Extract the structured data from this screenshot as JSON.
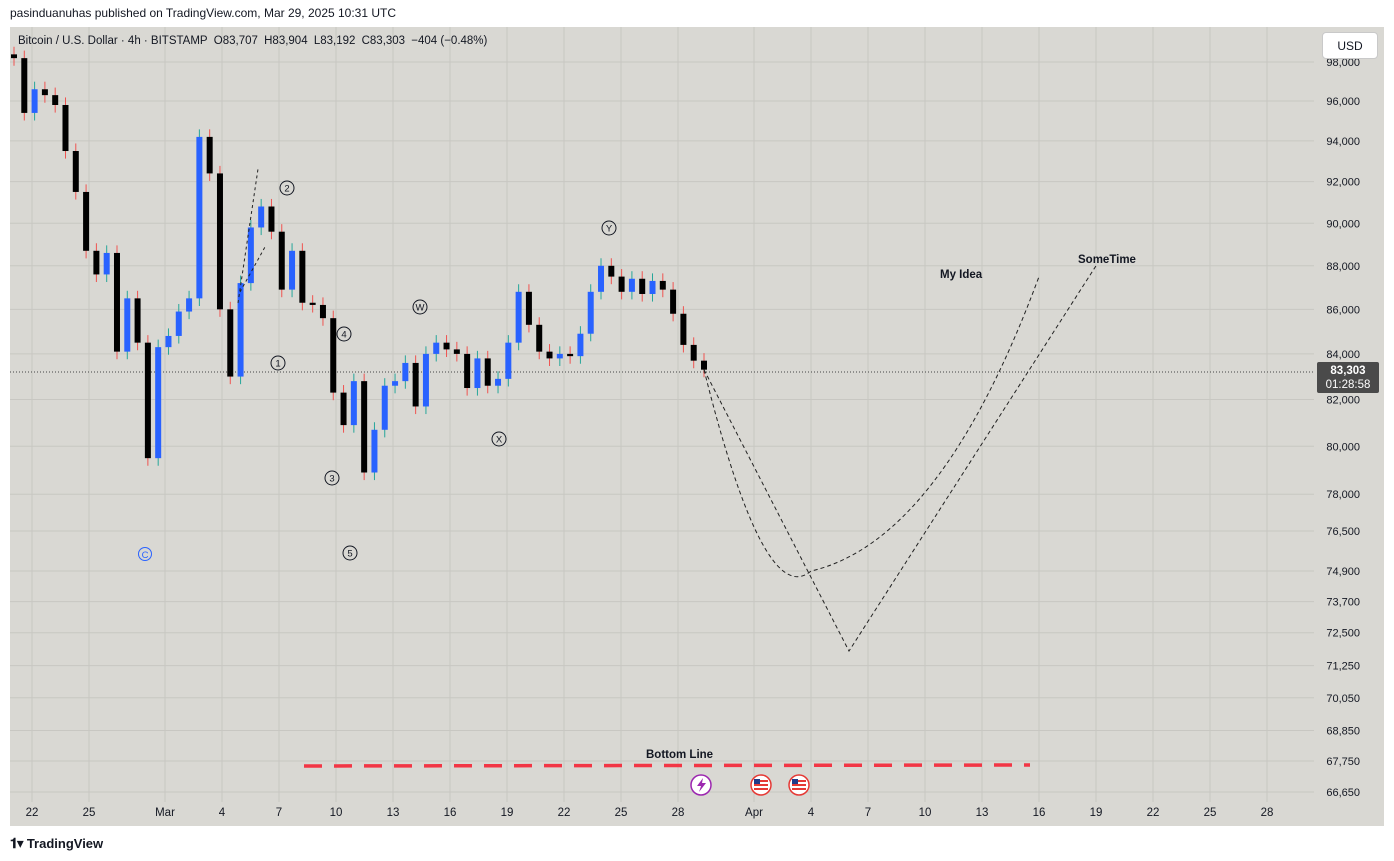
{
  "header": {
    "published_by": "pasinduanuhas published on TradingView.com, Mar 29, 2025 10:31 UTC"
  },
  "legend": {
    "symbol": "Bitcoin / U.S. Dollar · 4h · BITSTAMP",
    "open": "O83,707",
    "high": "H83,904",
    "low": "L83,192",
    "close": "C83,303",
    "change": "−404 (−0.48%)",
    "change_color": "#131722"
  },
  "toolbar": {
    "currency_label": "USD"
  },
  "price_tag": {
    "price": "83,303",
    "countdown": "01:28:58"
  },
  "footer": {
    "brand": "TradingView",
    "brand_icon": "tradingview-logo-icon"
  },
  "colors": {
    "background": "#d9d8d3",
    "up": "#2962ff",
    "down": "#000000",
    "bottom_line": "#f23645",
    "grid": "#c8c7c2",
    "wick_up": "#26a69a",
    "wick_down": "#ef5350"
  },
  "annotations": {
    "wave_labels": [
      "1",
      "2",
      "3",
      "4",
      "5",
      "W",
      "X",
      "Y"
    ],
    "c_label": "C",
    "my_idea": "My Idea",
    "sometime": "SomeTime",
    "bottom_line": "Bottom Line"
  },
  "event_icons": [
    "lightning-event-icon",
    "us-flag-event-icon",
    "us-flag-event-icon"
  ],
  "chart_data": {
    "type": "candlestick",
    "title": "Bitcoin / U.S. Dollar · 4h · BITSTAMP",
    "xlabel": "",
    "ylabel": "",
    "x_tick_labels": [
      "22",
      "25",
      "Mar",
      "4",
      "7",
      "10",
      "13",
      "16",
      "19",
      "22",
      "25",
      "28",
      "Apr",
      "4",
      "7",
      "10",
      "13",
      "16",
      "19",
      "22",
      "25",
      "28"
    ],
    "y_tick_labels": [
      "98,000",
      "96,000",
      "94,000",
      "92,000",
      "90,000",
      "88,000",
      "86,000",
      "84,000",
      "82,000",
      "80,000",
      "78,000",
      "76,500",
      "74,900",
      "73,700",
      "72,500",
      "71,250",
      "70,050",
      "68,850",
      "67,750",
      "66,650"
    ],
    "y_scale": "log",
    "ylim": [
      66000,
      99000
    ],
    "last_price": 83303,
    "price_path_4h_closes": [
      [
        "2025-02-21",
        98200
      ],
      [
        "2025-02-21",
        95400
      ],
      [
        "2025-02-22",
        96600
      ],
      [
        "2025-02-23",
        96300
      ],
      [
        "2025-02-24",
        95800
      ],
      [
        "2025-02-24",
        93500
      ],
      [
        "2025-02-25",
        91500
      ],
      [
        "2025-02-25",
        88700
      ],
      [
        "2025-02-26",
        87600
      ],
      [
        "2025-02-26",
        88600
      ],
      [
        "2025-02-27",
        84100
      ],
      [
        "2025-02-27",
        86500
      ],
      [
        "2025-02-28",
        84500
      ],
      [
        "2025-02-28",
        79500
      ],
      [
        "2025-02-28",
        84300
      ],
      [
        "2025-03-01",
        84800
      ],
      [
        "2025-03-01",
        85900
      ],
      [
        "2025-03-02",
        86500
      ],
      [
        "2025-03-02",
        94200
      ],
      [
        "2025-03-03",
        92400
      ],
      [
        "2025-03-03",
        86000
      ],
      [
        "2025-03-04",
        83000
      ],
      [
        "2025-03-04",
        87200
      ],
      [
        "2025-03-05",
        89800
      ],
      [
        "2025-03-05",
        90800
      ],
      [
        "2025-03-06",
        89600
      ],
      [
        "2025-03-06",
        86900
      ],
      [
        "2025-03-07",
        88700
      ],
      [
        "2025-03-07",
        86300
      ],
      [
        "2025-03-08",
        86200
      ],
      [
        "2025-03-09",
        85600
      ],
      [
        "2025-03-09",
        82300
      ],
      [
        "2025-03-10",
        80900
      ],
      [
        "2025-03-10",
        82800
      ],
      [
        "2025-03-11",
        78900
      ],
      [
        "2025-03-11",
        80700
      ],
      [
        "2025-03-12",
        82600
      ],
      [
        "2025-03-12",
        82800
      ],
      [
        "2025-03-13",
        83600
      ],
      [
        "2025-03-13",
        81700
      ],
      [
        "2025-03-14",
        84000
      ],
      [
        "2025-03-14",
        84500
      ],
      [
        "2025-03-15",
        84200
      ],
      [
        "2025-03-16",
        84000
      ],
      [
        "2025-03-16",
        82500
      ],
      [
        "2025-03-17",
        83800
      ],
      [
        "2025-03-18",
        82600
      ],
      [
        "2025-03-18",
        82900
      ],
      [
        "2025-03-19",
        84500
      ],
      [
        "2025-03-20",
        86800
      ],
      [
        "2025-03-20",
        85300
      ],
      [
        "2025-03-21",
        84100
      ],
      [
        "2025-03-21",
        83800
      ],
      [
        "2025-03-22",
        84000
      ],
      [
        "2025-03-23",
        83900
      ],
      [
        "2025-03-23",
        84900
      ],
      [
        "2025-03-24",
        86800
      ],
      [
        "2025-03-24",
        88000
      ],
      [
        "2025-03-25",
        87500
      ],
      [
        "2025-03-25",
        86800
      ],
      [
        "2025-03-26",
        87400
      ],
      [
        "2025-03-26",
        86700
      ],
      [
        "2025-03-27",
        87300
      ],
      [
        "2025-03-27",
        86900
      ],
      [
        "2025-03-28",
        85800
      ],
      [
        "2025-03-28",
        84400
      ],
      [
        "2025-03-29",
        83700
      ],
      [
        "2025-03-29",
        83303
      ]
    ],
    "projections": [
      {
        "name": "My Idea",
        "points": [
          [
            "2025-03-29",
            83303
          ],
          [
            "2025-04-04",
            74900
          ],
          [
            "2025-04-16",
            87500
          ]
        ]
      },
      {
        "name": "SomeTime",
        "points": [
          [
            "2025-03-29",
            83303
          ],
          [
            "2025-04-06",
            71800
          ],
          [
            "2025-04-19",
            88000
          ]
        ]
      }
    ],
    "bottom_line": {
      "label": "Bottom Line",
      "value": 67600,
      "from": "2025-03-08",
      "to": "2025-04-16"
    },
    "grid": true,
    "legend_position": "top-left"
  }
}
